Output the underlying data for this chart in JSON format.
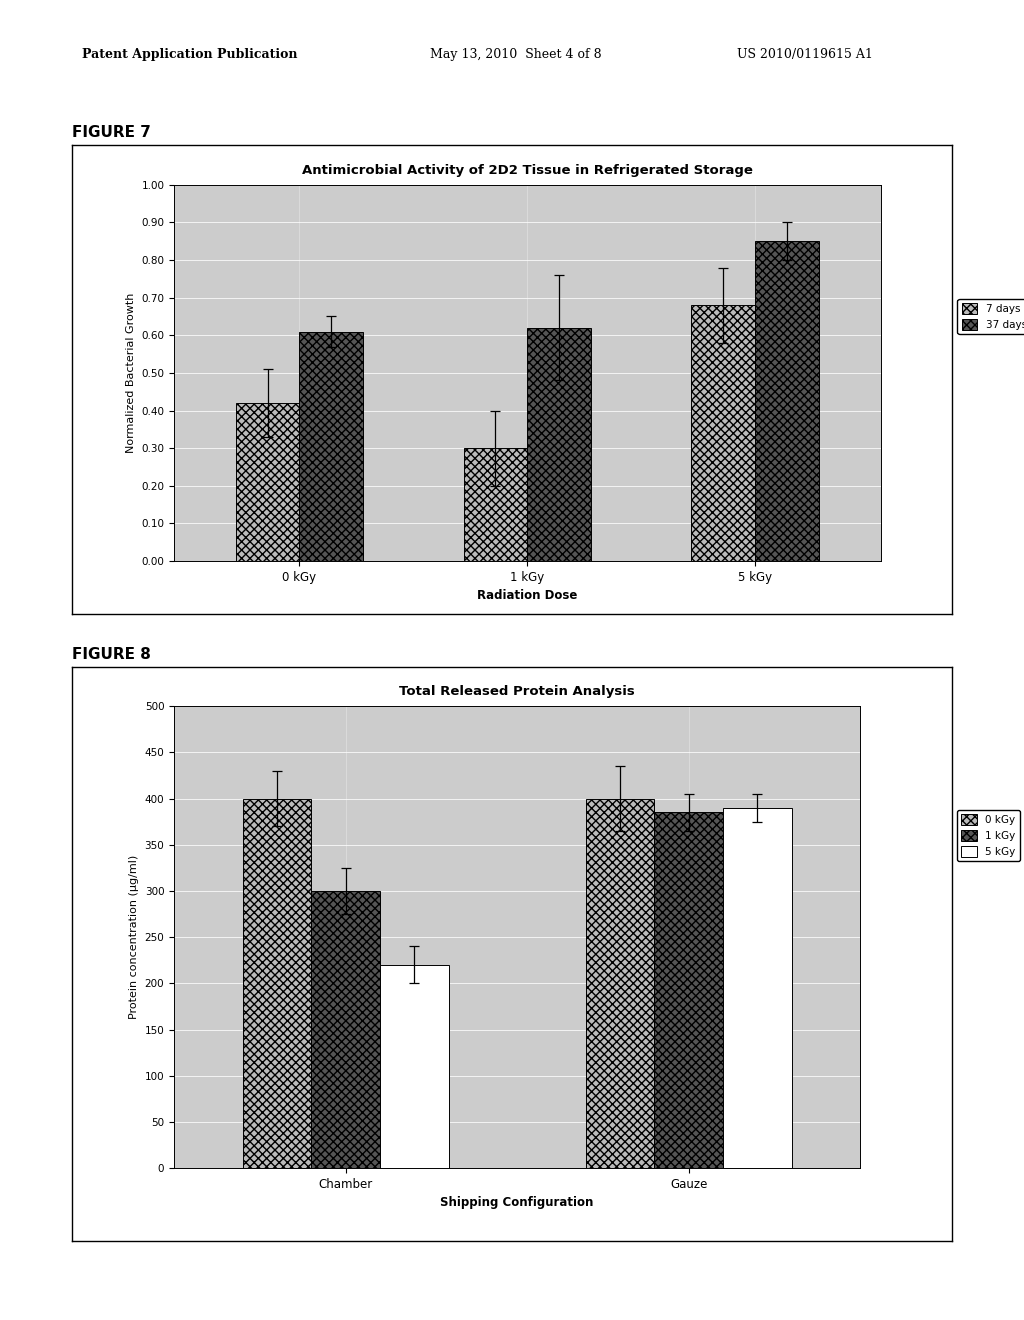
{
  "fig7": {
    "title": "Antimicrobial Activity of 2D2 Tissue in Refrigerated Storage",
    "xlabel": "Radiation Dose",
    "ylabel": "Normalized Bacterial Growth",
    "categories": [
      "0 kGy",
      "1 kGy",
      "5 kGy"
    ],
    "series": [
      {
        "label": "7 days",
        "values": [
          0.42,
          0.3,
          0.68
        ],
        "errors": [
          0.09,
          0.1,
          0.1
        ],
        "color": "#bbbbbb",
        "hatch": "xxxx"
      },
      {
        "label": "37 days",
        "values": [
          0.61,
          0.62,
          0.85
        ],
        "errors": [
          0.04,
          0.14,
          0.05
        ],
        "color": "#555555",
        "hatch": "xxxx"
      }
    ],
    "ylim": [
      0.0,
      1.0
    ],
    "yticks": [
      0.0,
      0.1,
      0.2,
      0.3,
      0.4,
      0.5,
      0.6,
      0.7,
      0.8,
      0.9,
      1.0
    ],
    "ytick_labels": [
      "0.00",
      "0.10",
      "0.20",
      "0.30",
      "0.40",
      "0.50",
      "0.60",
      "0.70",
      "0.80",
      "0.90",
      "1.00"
    ]
  },
  "fig8": {
    "title": "Total Released Protein Analysis",
    "xlabel": "Shipping Configuration",
    "ylabel": "Protein concentration (µg/ml)",
    "categories": [
      "Chamber",
      "Gauze"
    ],
    "series": [
      {
        "label": "0 kGy",
        "values": [
          400,
          400
        ],
        "errors": [
          30,
          35
        ],
        "color": "#bbbbbb",
        "hatch": "xxxx"
      },
      {
        "label": "1 kGy",
        "values": [
          300,
          385
        ],
        "errors": [
          25,
          20
        ],
        "color": "#555555",
        "hatch": "xxxx"
      },
      {
        "label": "5 kGy",
        "values": [
          220,
          390
        ],
        "errors": [
          20,
          15
        ],
        "color": "#ffffff",
        "hatch": ""
      }
    ],
    "ylim": [
      0,
      500
    ],
    "yticks": [
      0,
      50,
      100,
      150,
      200,
      250,
      300,
      350,
      400,
      450,
      500
    ],
    "ytick_labels": [
      "0",
      "50",
      "100",
      "150",
      "200",
      "250",
      "300",
      "350",
      "400",
      "450",
      "500"
    ]
  },
  "header_left": "Patent Application Publication",
  "header_mid": "May 13, 2010  Sheet 4 of 8",
  "header_right": "US 2010/0119615 A1",
  "plot_bg_color": "#cccccc",
  "outer_box_color": "#888888"
}
